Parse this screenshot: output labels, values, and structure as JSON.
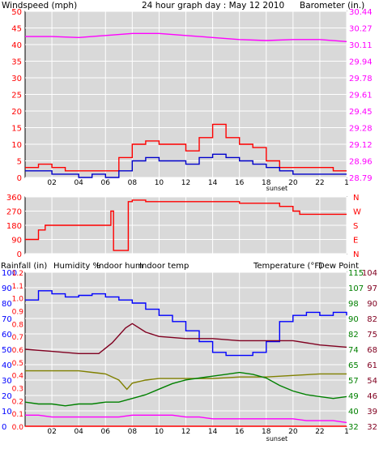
{
  "colors": {
    "frame": "#000000",
    "panel_bg": "#d4d0c8",
    "plot_bg": "#d9d9d9",
    "grid": "#ffffff",
    "wind_speed": "#0000cc",
    "wind_gust": "#ff0000",
    "barometer": "#ff00ff",
    "direction": "#ff0000",
    "humidity": "#0000ff",
    "indoor_hum": "#808000",
    "indoor_temp": "#800020",
    "temperature": "#008000",
    "dew_point": "#ff00ff",
    "rainfall": "#ff0000"
  },
  "header": {
    "title": "24 hour graph day : May 12 2010",
    "left_label": "Windspeed (mph)",
    "right_label": "Barometer (in.)"
  },
  "bottom_header": {
    "rainfall": "Rainfall (in)",
    "humidity": "Humidity %",
    "indoor_hum": "Indoor hum",
    "indoor_temp": "Indoor temp",
    "temperature": "Temperature (°F)",
    "dew_point": "Dew Point"
  },
  "x_axis": {
    "ticks": [
      "02",
      "04",
      "06",
      "08",
      "10",
      "12",
      "14",
      "16",
      "18",
      "20",
      "22",
      "1"
    ],
    "sunset_label": "sunset"
  },
  "chart_data": [
    {
      "type": "line",
      "panel": "wind-barometer",
      "x_range": [
        0,
        24
      ],
      "left_axis": {
        "ticks": [
          "50",
          "45",
          "40",
          "35",
          "30",
          "25",
          "20",
          "15",
          "10",
          "5",
          "0"
        ],
        "ylim": [
          0,
          50
        ]
      },
      "right_axis": {
        "ticks": [
          "30.44",
          "30.27",
          "30.11",
          "29.94",
          "29.78",
          "29.61",
          "29.45",
          "29.28",
          "29.12",
          "28.96",
          "28.79"
        ],
        "ylim": [
          28.79,
          30.44
        ]
      },
      "series": [
        {
          "key": "barometer",
          "axis": "right",
          "x": [
            0,
            2,
            4,
            6,
            8,
            10,
            12,
            14,
            16,
            18,
            20,
            22,
            24
          ],
          "y": [
            30.19,
            30.19,
            30.18,
            30.2,
            30.22,
            30.22,
            30.2,
            30.18,
            30.16,
            30.15,
            30.16,
            30.16,
            30.14
          ]
        },
        {
          "key": "wind_gust",
          "axis": "left",
          "x": [
            0,
            1,
            2,
            3,
            4,
            5,
            6,
            7,
            8,
            9,
            10,
            11,
            12,
            13,
            14,
            15,
            16,
            17,
            18,
            19,
            20,
            21,
            22,
            23,
            24
          ],
          "y": [
            3,
            4,
            3,
            2,
            2,
            2,
            2,
            6,
            10,
            11,
            10,
            10,
            8,
            12,
            16,
            12,
            10,
            9,
            5,
            3,
            3,
            3,
            3,
            2,
            2
          ]
        },
        {
          "key": "wind_speed",
          "axis": "left",
          "x": [
            0,
            1,
            2,
            3,
            4,
            5,
            6,
            7,
            8,
            9,
            10,
            11,
            12,
            13,
            14,
            15,
            16,
            17,
            18,
            19,
            20,
            21,
            22,
            23,
            24
          ],
          "y": [
            2,
            2,
            1,
            1,
            0,
            1,
            0,
            2,
            5,
            6,
            5,
            5,
            4,
            6,
            7,
            6,
            5,
            4,
            3,
            2,
            1,
            1,
            1,
            1,
            1
          ]
        }
      ]
    },
    {
      "type": "line",
      "panel": "wind-direction",
      "x_range": [
        0,
        24
      ],
      "left_axis": {
        "ticks": [
          "360",
          "270",
          "180",
          "90",
          "0"
        ],
        "ylim": [
          0,
          360
        ]
      },
      "right_axis": {
        "ticks": [
          "N",
          "W",
          "S",
          "E",
          "N"
        ]
      },
      "series": [
        {
          "key": "direction",
          "x": [
            0,
            0.6,
            1.0,
            1.5,
            2,
            4,
            6,
            6.4,
            6.6,
            7.0,
            7.5,
            7.7,
            8,
            9,
            10,
            12,
            14,
            16,
            18,
            19,
            20,
            20.5,
            21,
            22,
            24
          ],
          "y": [
            90,
            90,
            150,
            180,
            180,
            180,
            180,
            270,
            20,
            20,
            20,
            330,
            340,
            330,
            330,
            330,
            330,
            320,
            320,
            300,
            270,
            250,
            250,
            250,
            250
          ]
        }
      ]
    },
    {
      "type": "line",
      "panel": "temperature-humidity",
      "x_range": [
        0,
        24
      ],
      "left_axis": {
        "ticks": [
          "100",
          "90",
          "80",
          "70",
          "60",
          "50",
          "40",
          "30",
          "20",
          "10",
          "0"
        ],
        "ylim": [
          0,
          100
        ]
      },
      "left_axis_inner": {
        "ticks": [
          "1.2",
          "1.1",
          "1.0",
          "0.9",
          "0.8",
          "0.7",
          "0.6",
          "0.5",
          "0.4",
          "0.3",
          "0.2",
          "0.1",
          "0.0"
        ]
      },
      "right_axis_inner": {
        "ticks": [
          "115",
          "107",
          "98",
          "90",
          "82",
          "74",
          "65",
          "57",
          "49",
          "40",
          "32"
        ]
      },
      "right_axis": {
        "ticks": [
          "104",
          "97",
          "90",
          "82",
          "75",
          "68",
          "61",
          "54",
          "46",
          "39",
          "32"
        ]
      },
      "series": [
        {
          "key": "humidity",
          "axis": "left",
          "x": [
            0,
            1,
            2,
            3,
            4,
            5,
            6,
            7,
            8,
            9,
            10,
            11,
            12,
            13,
            14,
            15,
            16,
            17,
            18,
            19,
            20,
            21,
            22,
            23,
            24
          ],
          "y": [
            82,
            88,
            86,
            84,
            85,
            86,
            84,
            82,
            80,
            76,
            72,
            68,
            62,
            55,
            48,
            46,
            46,
            48,
            55,
            68,
            72,
            74,
            72,
            74,
            72
          ]
        },
        {
          "key": "indoor_temp",
          "axis": "right",
          "x": [
            0,
            2,
            4,
            5.5,
            6.5,
            7.5,
            8,
            9,
            10,
            12,
            14,
            16,
            18,
            20,
            22,
            24
          ],
          "y": [
            68,
            67,
            66,
            66,
            71,
            78,
            80,
            76,
            74,
            73,
            73,
            72,
            72,
            72,
            70,
            69
          ]
        },
        {
          "key": "indoor_hum",
          "axis": "left",
          "x": [
            0,
            2,
            4,
            5,
            6,
            7,
            7.6,
            8,
            9,
            10,
            12,
            14,
            16,
            18,
            20,
            22,
            24
          ],
          "y": [
            36,
            36,
            36,
            35,
            34,
            30,
            24,
            28,
            30,
            31,
            31,
            31,
            32,
            32,
            33,
            34,
            34
          ]
        },
        {
          "key": "temperature",
          "axis": "right_inner",
          "x": [
            0,
            1,
            2,
            3,
            4,
            5,
            6,
            7,
            8,
            9,
            10,
            11,
            12,
            13,
            14,
            15,
            16,
            17,
            18,
            19,
            20,
            21,
            22,
            23,
            24
          ],
          "y": [
            45,
            44,
            44,
            43,
            44,
            44,
            45,
            45,
            47,
            49,
            52,
            55,
            57,
            58,
            59,
            60,
            61,
            60,
            58,
            54,
            51,
            49,
            48,
            47,
            48
          ]
        },
        {
          "key": "dew_point",
          "axis": "right_inner",
          "x": [
            0,
            1,
            2,
            3,
            4,
            5,
            6,
            7,
            8,
            9,
            10,
            11,
            12,
            13,
            14,
            15,
            16,
            17,
            18,
            19,
            20,
            21,
            22,
            23,
            24
          ],
          "y": [
            38,
            38,
            37,
            37,
            37,
            37,
            37,
            37,
            38,
            38,
            38,
            38,
            37,
            37,
            36,
            36,
            36,
            36,
            36,
            36,
            36,
            35,
            35,
            35,
            34
          ]
        },
        {
          "key": "rainfall",
          "axis": "left_inner",
          "x": [
            0,
            24
          ],
          "y": [
            0.0,
            0.0
          ]
        }
      ]
    }
  ]
}
